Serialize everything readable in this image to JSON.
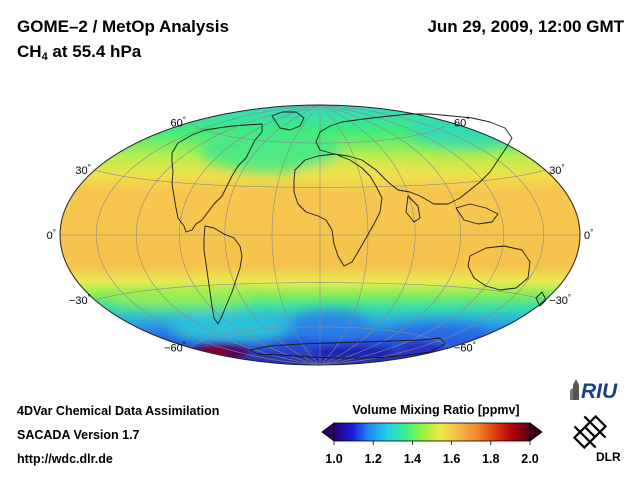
{
  "header": {
    "title": "GOME–2 / MetOp Analysis",
    "subtitle_main": "CH",
    "subtitle_sub": "4",
    "subtitle_rest": " at 55.4 hPa",
    "datetime": "Jun 29, 2009, 12:00 GMT"
  },
  "map": {
    "projection": "Hammer-Aitoff",
    "graticule_latitudes": [
      60,
      30,
      0,
      -30,
      -60
    ],
    "lat_labels": {
      "60": "60",
      "30": "30",
      "0": "0",
      "-30": "−30",
      "-60": "−60"
    },
    "degree_symbol": "°"
  },
  "colorbar": {
    "title": "Volume Mixing Ratio [ppmv]",
    "ticks": [
      "1.0",
      "1.2",
      "1.4",
      "1.6",
      "1.8",
      "2.0"
    ],
    "min": 1.0,
    "max": 2.0,
    "colors": [
      "#2a0070",
      "#1b1ad8",
      "#1f8cf0",
      "#22d0e8",
      "#3af08a",
      "#9cf03c",
      "#f0e84a",
      "#f3b94a",
      "#f08a30",
      "#e04010",
      "#b00010",
      "#5a0010"
    ]
  },
  "footer": {
    "line1": "4DVar Chemical Data Assimilation",
    "line2": "SACADA Version 1.7",
    "line3": "http://wdc.dlr.de"
  },
  "logos": {
    "riu": "RIU",
    "dlr": "DLR"
  }
}
